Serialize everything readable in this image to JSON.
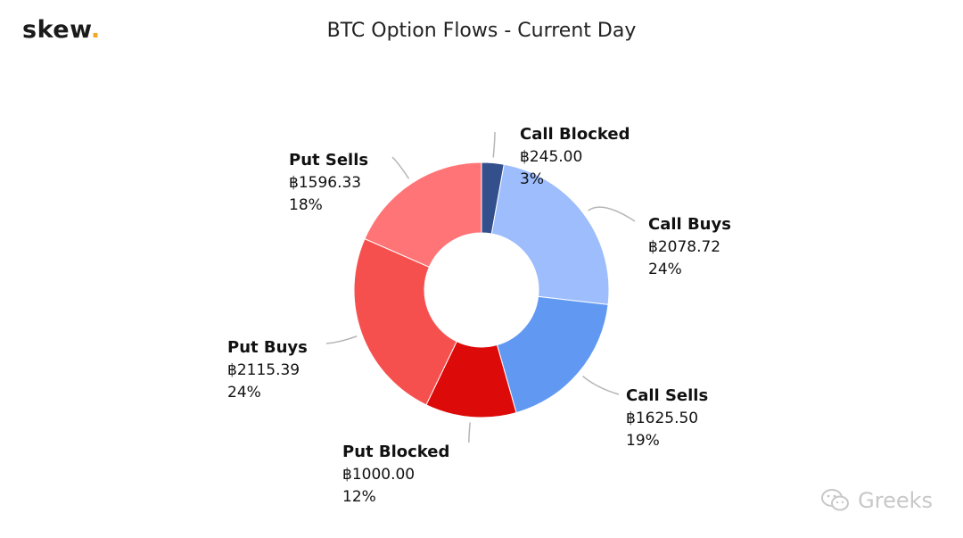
{
  "brand": {
    "name": "skew",
    "dot": "."
  },
  "watermark": {
    "text": "Greeks",
    "icon": "wechat-icon"
  },
  "chart_data": {
    "type": "pie",
    "title": "BTC Option Flows - Current Day",
    "unit_symbol": "฿",
    "slices": [
      {
        "label": "Call Blocked",
        "value": 245.0,
        "value_text": "฿245.00",
        "percent_text": "3%",
        "color": "#334f8c"
      },
      {
        "label": "Call Buys",
        "value": 2078.72,
        "value_text": "฿2078.72",
        "percent_text": "24%",
        "color": "#9dbdfc"
      },
      {
        "label": "Call Sells",
        "value": 1625.5,
        "value_text": "฿1625.50",
        "percent_text": "19%",
        "color": "#6199f2"
      },
      {
        "label": "Put Blocked",
        "value": 1000.0,
        "value_text": "฿1000.00",
        "percent_text": "12%",
        "color": "#dd0a0a"
      },
      {
        "label": "Put Buys",
        "value": 2115.39,
        "value_text": "฿2115.39",
        "percent_text": "24%",
        "color": "#f5504e"
      },
      {
        "label": "Put Sells",
        "value": 1596.33,
        "value_text": "฿1596.33",
        "percent_text": "18%",
        "color": "#ff7476"
      }
    ]
  }
}
